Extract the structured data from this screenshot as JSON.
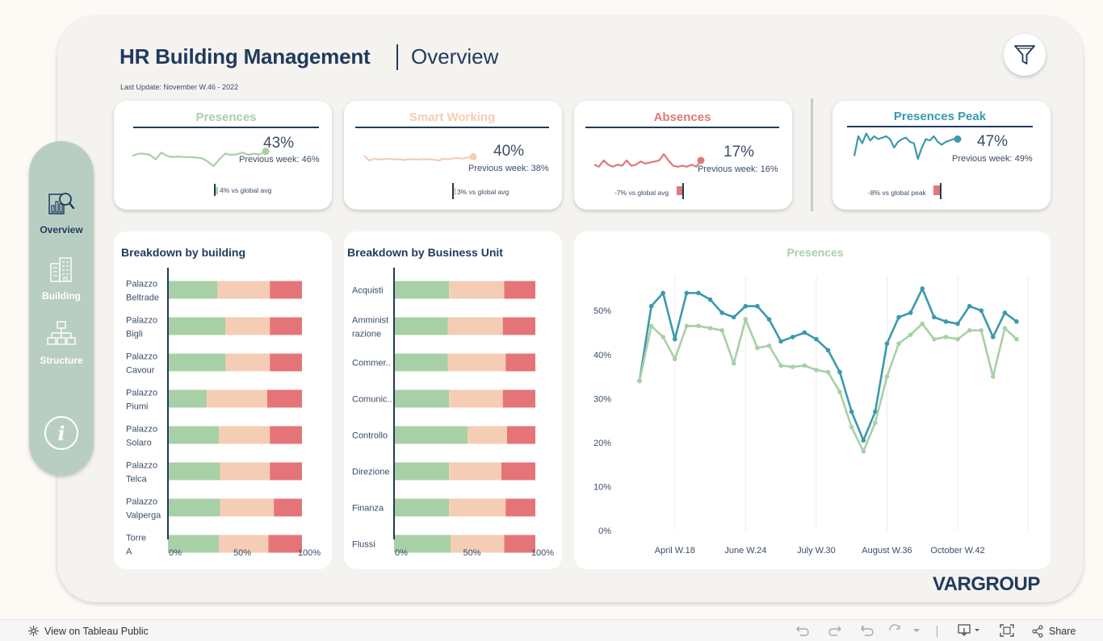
{
  "header": {
    "title": "HR Building Management",
    "subtitle": "Overview",
    "last_update": "Last Update: November W.46 - 2022"
  },
  "sidebar": {
    "items": [
      {
        "label": "Overview",
        "icon": "report-search-icon"
      },
      {
        "label": "Building",
        "icon": "building-icon"
      },
      {
        "label": "Structure",
        "icon": "org-chart-icon"
      }
    ],
    "info_icon": "info-icon"
  },
  "kpis": [
    {
      "title": "Presences",
      "pct": "43%",
      "prev": "Previous week: 46%",
      "vs": "4% vs global avg",
      "color": "#a8d0a6",
      "progress": 0.43
    },
    {
      "title": "Smart Working",
      "pct": "40%",
      "prev": "Previous week: 38%",
      "vs": "3% vs global avg",
      "color": "#f4cdb3",
      "progress": 0.4
    },
    {
      "title": "Absences",
      "pct": "17%",
      "prev": "Previous week: 16%",
      "vs": "-7% vs global avg",
      "color": "#e0787a",
      "progress": 0.17
    },
    {
      "title": "Presences Peak",
      "pct": "47%",
      "prev": "Previous week: 49%",
      "vs": "-8% vs global peak",
      "color": "#3a9aab",
      "progress": 0.47
    }
  ],
  "chart_data": [
    {
      "type": "bar",
      "stacked": true,
      "orientation": "horizontal",
      "title": "Breakdown by building",
      "categories": [
        "Palazzo Beltrade",
        "Palazzo Bigli",
        "Palazzo Cavour",
        "Palazzo Piumi",
        "Palazzo Solaro",
        "Palazzo Telca",
        "Palazzo Valperga",
        "Torre A"
      ],
      "series": [
        {
          "name": "Presences",
          "color": "#a8d0a6",
          "values": [
            37,
            43,
            43,
            29,
            38,
            39,
            39,
            38
          ]
        },
        {
          "name": "Smart Working",
          "color": "#f5cdb4",
          "values": [
            39,
            33,
            33,
            45,
            38,
            37,
            40,
            37
          ]
        },
        {
          "name": "Absences",
          "color": "#e57479",
          "values": [
            24,
            24,
            24,
            26,
            24,
            24,
            21,
            25
          ]
        }
      ],
      "xticks": [
        "0%",
        "50%",
        "100%"
      ],
      "xlim": [
        0,
        100
      ]
    },
    {
      "type": "bar",
      "stacked": true,
      "orientation": "horizontal",
      "title": "Breakdown by Business Unit",
      "categories": [
        "Acquisti",
        "Amministrazione",
        "Commer..",
        "Comunic..",
        "Controllo",
        "Direzione",
        "Finanza",
        "Flussi"
      ],
      "category_labels": [
        [
          "Acquisti"
        ],
        [
          "Amminist",
          "razione"
        ],
        [
          "Commer.."
        ],
        [
          "Comunic.."
        ],
        [
          "Controllo"
        ],
        [
          "Direzione"
        ],
        [
          "Finanza"
        ],
        [
          "Flussi"
        ]
      ],
      "series": [
        {
          "name": "Presences",
          "color": "#a8d0a6",
          "values": [
            39,
            38,
            38,
            39,
            52,
            39,
            39,
            40
          ]
        },
        {
          "name": "Smart Working",
          "color": "#f5cdb4",
          "values": [
            39,
            39,
            41,
            38,
            28,
            37,
            40,
            38
          ]
        },
        {
          "name": "Absences",
          "color": "#e57479",
          "values": [
            22,
            23,
            21,
            23,
            20,
            24,
            21,
            22
          ]
        }
      ],
      "xticks": [
        "0%",
        "50%",
        "100%"
      ],
      "xlim": [
        0,
        100
      ]
    },
    {
      "type": "line",
      "title": "Presences",
      "ylim": [
        0,
        57
      ],
      "yticks": [
        0,
        10,
        20,
        30,
        40,
        50
      ],
      "ytick_labels": [
        "0%",
        "10%",
        "20%",
        "30%",
        "40%",
        "50%"
      ],
      "xtick_labels": [
        "April W.18",
        "June W.24",
        "July W.30",
        "August W.36",
        "October W.42"
      ],
      "xtick_index": [
        3,
        9,
        15,
        21,
        27
      ],
      "series": [
        {
          "name": "Presences Peak",
          "color": "#3a9aab",
          "values": [
            34,
            51,
            54,
            43.5,
            54,
            54,
            52.5,
            49.5,
            48.5,
            51,
            51,
            48,
            43,
            44,
            45,
            43.5,
            41,
            36,
            27,
            20.5,
            27,
            42.5,
            48.5,
            49.5,
            55,
            48.5,
            47.5,
            47,
            51,
            50,
            44,
            49.5,
            47.5
          ]
        },
        {
          "name": "Presences",
          "color": "#a8d0a6",
          "values": [
            34,
            46.5,
            44,
            39,
            46.5,
            46.5,
            46,
            45.5,
            38,
            48,
            41.5,
            42,
            37.5,
            37.2,
            37.5,
            36.5,
            36,
            31.5,
            23.5,
            18,
            24.5,
            35,
            42.5,
            44.5,
            47,
            43.5,
            44,
            43.5,
            45.5,
            45.5,
            35,
            46,
            43.5
          ]
        }
      ]
    }
  ],
  "sparklines": {
    "presences": [
      0.55,
      0.45,
      0.45,
      0.5,
      0.7,
      0.4,
      0.55,
      0.6,
      0.58,
      0.6,
      0.6,
      0.62,
      0.65,
      0.8,
      1.0,
      0.7,
      0.45,
      0.5,
      0.48,
      0.4,
      0.5,
      0.45,
      0.48,
      0.35
    ],
    "smart_working": [
      0.3,
      0.7,
      0.55,
      0.6,
      0.6,
      0.55,
      0.6,
      0.6,
      0.65,
      0.58,
      0.6,
      0.62,
      0.58,
      0.6,
      0.62,
      0.7,
      0.55,
      0.6,
      0.52,
      0.5,
      0.55,
      0.45,
      0.4
    ],
    "absences": [
      0.7,
      0.8,
      0.5,
      0.7,
      0.8,
      0.7,
      0.75,
      0.5,
      0.75,
      0.7,
      0.55,
      0.65,
      0.6,
      0.55,
      0.5,
      0.2,
      0.5,
      0.75,
      0.8,
      0.75,
      0.8,
      0.7,
      0.8,
      0.5
    ],
    "peak": [
      0.9,
      0.2,
      0.45,
      0.1,
      0.35,
      0.2,
      0.3,
      0.25,
      0.2,
      0.3,
      0.6,
      0.4,
      0.3,
      0.25,
      0.4,
      0.45,
      1.0,
      0.6,
      0.3,
      0.35,
      0.2,
      0.4,
      0.5,
      0.4,
      0.35,
      0.3,
      0.3
    ]
  },
  "brand": {
    "logo": "VARGROUP"
  },
  "toolbar": {
    "view_label": "View on Tableau Public",
    "share_label": "Share"
  }
}
